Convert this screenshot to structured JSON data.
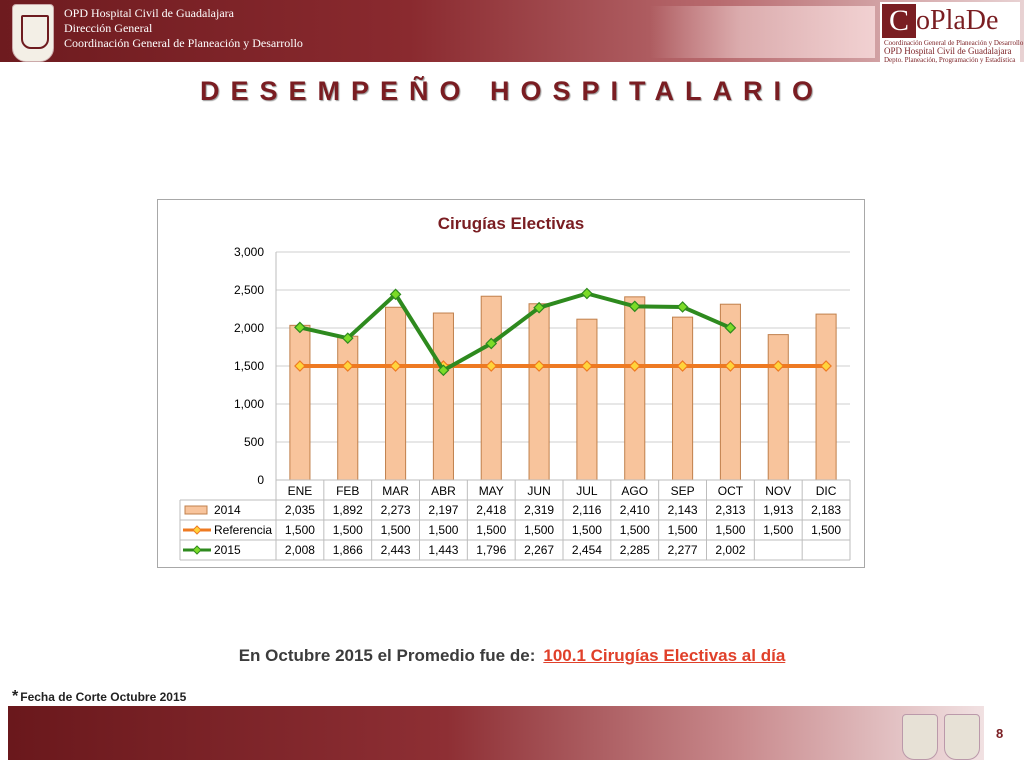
{
  "header": {
    "line1": "OPD Hospital Civil de Guadalajara",
    "line2": "Dirección General",
    "line3": "Coordinación General de Planeación y Desarrollo",
    "logo_c": "C",
    "logo_word": "oPlaDe",
    "logo_line1": "Coordinación General de Planeación y Desarrollo",
    "logo_line2": "OPD Hospital Civil de Guadalajara",
    "logo_line3": "Depto. Planeación, Programación y Estadística"
  },
  "page_title": "DESEMPEÑO HOSPITALARIO",
  "chart_data": {
    "type": "bar",
    "title": "Cirugías Electivas",
    "categories": [
      "ENE",
      "FEB",
      "MAR",
      "ABR",
      "MAY",
      "JUN",
      "JUL",
      "AGO",
      "SEP",
      "OCT",
      "NOV",
      "DIC"
    ],
    "ylim": [
      0,
      3000
    ],
    "yticks": [
      "0",
      "500",
      "1,000",
      "1,500",
      "2,000",
      "2,500",
      "3,000"
    ],
    "grid": true,
    "series": [
      {
        "name": "2014",
        "kind": "bar",
        "color": "#f8c49c",
        "stroke": "#c0804c",
        "values": [
          2035,
          1892,
          2273,
          2197,
          2418,
          2319,
          2116,
          2410,
          2143,
          2313,
          1913,
          2183
        ],
        "labels": [
          "2,035",
          "1,892",
          "2,273",
          "2,197",
          "2,418",
          "2,319",
          "2,116",
          "2,410",
          "2,143",
          "2,313",
          "1,913",
          "2,183"
        ]
      },
      {
        "name": "Referencia",
        "kind": "line",
        "color": "#ee7a22",
        "marker": "#ffd43b",
        "values": [
          1500,
          1500,
          1500,
          1500,
          1500,
          1500,
          1500,
          1500,
          1500,
          1500,
          1500,
          1500
        ],
        "labels": [
          "1,500",
          "1,500",
          "1,500",
          "1,500",
          "1,500",
          "1,500",
          "1,500",
          "1,500",
          "1,500",
          "1,500",
          "1,500",
          "1,500"
        ]
      },
      {
        "name": "2015",
        "kind": "line",
        "color": "#2e8a1e",
        "marker": "#7cdb28",
        "values": [
          2008,
          1866,
          2443,
          1443,
          1796,
          2267,
          2454,
          2285,
          2277,
          2002,
          null,
          null
        ],
        "labels": [
          "2,008",
          "1,866",
          "2,443",
          "1,443",
          "1,796",
          "2,267",
          "2,454",
          "2,285",
          "2,277",
          "2,002",
          "",
          ""
        ]
      }
    ]
  },
  "summary": {
    "text": "En Octubre 2015 el Promedio fue de:",
    "highlight": "100.1 Cirugías Electivas al día"
  },
  "footnote": {
    "star": "*",
    "text": "Fecha de Corte Octubre 2015"
  },
  "page_number": "8"
}
